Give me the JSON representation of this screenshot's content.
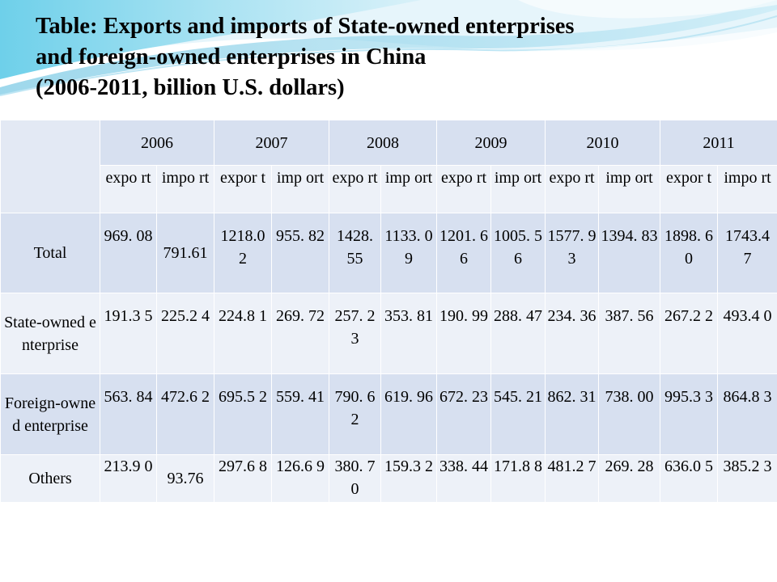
{
  "title_lines": [
    "Table: Exports and imports of State-owned enterprises",
    "and foreign-owned enterprises in China",
    "(2006-2011, billion U.S. dollars)"
  ],
  "table": {
    "years": [
      "2006",
      "2007",
      "2008",
      "2009",
      "2010",
      "2011"
    ],
    "subheaders": [
      "expo rt",
      "impo rt",
      "expor t",
      "imp ort",
      "expo rt",
      "imp ort",
      "expo rt",
      "imp ort",
      "expo rt",
      "imp ort",
      "expor t",
      "impo rt"
    ],
    "rows": [
      {
        "label": "Total",
        "values": [
          "969. 08",
          "791.61",
          "1218.0 2",
          "955. 82",
          "1428. 55",
          "1133. 09",
          "1201. 66",
          "1005. 56",
          "1577. 93",
          "1394. 83",
          "1898. 60",
          "1743.4 7"
        ]
      },
      {
        "label": "State-owned enterprise",
        "values": [
          "191.3 5",
          "225.2 4",
          "224.8 1",
          "269. 72",
          "257. 23",
          "353. 81",
          "190. 99",
          "288. 47",
          "234. 36",
          "387. 56",
          "267.2 2",
          "493.4 0"
        ]
      },
      {
        "label": "Foreign-owned enterprise",
        "values": [
          "563. 84",
          "472.6 2",
          "695.5 2",
          "559. 41",
          "790. 62",
          "619. 96",
          "672. 23",
          "545. 21",
          "862. 31",
          "738. 00",
          "995.3 3",
          "864.8 3"
        ]
      },
      {
        "label": "Others",
        "values": [
          "213.9 0",
          "93.76",
          "297.6 8",
          "126.6 9",
          "380. 70",
          "159.3 2",
          "338. 44",
          "171.8 8",
          "481.2 7",
          "269. 28",
          "636.0 5",
          "385.2 3"
        ]
      }
    ]
  },
  "colors": {
    "band_dark": "#d7e0f0",
    "band_light": "#edf1f8",
    "wave_accent": "#5fc4e0"
  }
}
